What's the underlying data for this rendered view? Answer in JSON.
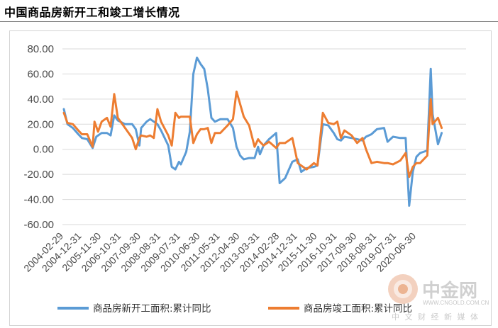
{
  "page": {
    "title": "中国商品房新开工和竣工增长情况"
  },
  "watermark": {
    "name": "中金网",
    "url": "WWW.CNGOLD.COM.CN",
    "tagline": "中 文 财 经 新 媒 体"
  },
  "colors": {
    "series1": "#5b9bd5",
    "series2": "#ed7d31",
    "grid": "#d9d9d9",
    "text": "#4a4a4a"
  },
  "chart_data": {
    "type": "line",
    "title": "",
    "xlabel": "",
    "ylabel": "",
    "ylim": [
      -60,
      80
    ],
    "y_ticks": [
      "80.00",
      "60.00",
      "40.00",
      "20.00",
      "0.00",
      "-20.00",
      "-40.00",
      "-60.00"
    ],
    "y_tick_values": [
      80,
      60,
      40,
      20,
      0,
      -20,
      -40,
      -60
    ],
    "x_ticks": [
      "2004-02-29",
      "2004-12-31",
      "2005-11-30",
      "2006-10-31",
      "2007-09-30",
      "2008-08-31",
      "2009-07-31",
      "2010-06-30",
      "2011-05-31",
      "2012-04-30",
      "2013-03-31",
      "2014-02-28",
      "2014-12-31",
      "2015-11-30",
      "2016-10-31",
      "2017-09-30",
      "2018-08-31",
      "2019-07-31",
      "2020-06-30"
    ],
    "grid": "horizontal",
    "legend_position": "bottom",
    "series": [
      {
        "name": "商品房新开工面积:累计同比",
        "color": "#5b9bd5",
        "points": [
          [
            "2004-02-29",
            32
          ],
          [
            "2004-04-30",
            20
          ],
          [
            "2004-07-31",
            17
          ],
          [
            "2004-10-31",
            12
          ],
          [
            "2004-12-31",
            9
          ],
          [
            "2005-03-31",
            8
          ],
          [
            "2005-06-30",
            1
          ],
          [
            "2005-08-31",
            10
          ],
          [
            "2005-11-30",
            13
          ],
          [
            "2006-02-28",
            13
          ],
          [
            "2006-04-30",
            11
          ],
          [
            "2006-06-30",
            27
          ],
          [
            "2006-08-31",
            23
          ],
          [
            "2006-12-31",
            20
          ],
          [
            "2007-04-30",
            20
          ],
          [
            "2007-06-30",
            16
          ],
          [
            "2007-08-31",
            3
          ],
          [
            "2007-09-30",
            17
          ],
          [
            "2007-12-31",
            22
          ],
          [
            "2008-02-29",
            24
          ],
          [
            "2008-04-30",
            22
          ],
          [
            "2008-06-30",
            20
          ],
          [
            "2008-08-31",
            15
          ],
          [
            "2008-12-31",
            3
          ],
          [
            "2009-02-28",
            -14
          ],
          [
            "2009-04-30",
            -16
          ],
          [
            "2009-06-30",
            -10
          ],
          [
            "2009-07-31",
            -12
          ],
          [
            "2009-10-31",
            -2
          ],
          [
            "2009-12-31",
            14
          ],
          [
            "2010-02-28",
            60
          ],
          [
            "2010-04-30",
            73
          ],
          [
            "2010-06-30",
            68
          ],
          [
            "2010-08-31",
            64
          ],
          [
            "2010-10-31",
            48
          ],
          [
            "2010-12-31",
            25
          ],
          [
            "2011-02-28",
            22
          ],
          [
            "2011-05-31",
            24
          ],
          [
            "2011-09-30",
            24
          ],
          [
            "2011-12-31",
            17
          ],
          [
            "2012-02-29",
            2
          ],
          [
            "2012-04-30",
            -5
          ],
          [
            "2012-06-30",
            -8
          ],
          [
            "2012-09-30",
            -7
          ],
          [
            "2012-12-31",
            -7
          ],
          [
            "2013-02-28",
            2
          ],
          [
            "2013-03-31",
            -4
          ],
          [
            "2013-05-31",
            3
          ],
          [
            "2013-08-31",
            8
          ],
          [
            "2013-12-31",
            13
          ],
          [
            "2014-02-28",
            -27
          ],
          [
            "2014-05-31",
            -23
          ],
          [
            "2014-09-30",
            -10
          ],
          [
            "2014-12-31",
            -8
          ],
          [
            "2015-02-28",
            -18
          ],
          [
            "2015-05-31",
            -15
          ],
          [
            "2015-09-30",
            -14
          ],
          [
            "2015-11-30",
            -13
          ],
          [
            "2016-02-29",
            20
          ],
          [
            "2016-05-31",
            19
          ],
          [
            "2016-08-31",
            13
          ],
          [
            "2016-10-31",
            8
          ],
          [
            "2016-12-31",
            7
          ],
          [
            "2017-02-28",
            10
          ],
          [
            "2017-06-30",
            9
          ],
          [
            "2017-09-30",
            8
          ],
          [
            "2017-12-31",
            7
          ],
          [
            "2018-02-28",
            10
          ],
          [
            "2018-05-31",
            12
          ],
          [
            "2018-08-31",
            16
          ],
          [
            "2018-12-31",
            17
          ],
          [
            "2019-02-28",
            6
          ],
          [
            "2019-05-31",
            10
          ],
          [
            "2019-09-30",
            9
          ],
          [
            "2019-12-31",
            9
          ],
          [
            "2020-02-29",
            -45
          ],
          [
            "2020-04-30",
            -18
          ],
          [
            "2020-06-30",
            -6
          ],
          [
            "2020-08-31",
            -3
          ],
          [
            "2020-12-31",
            -1
          ],
          [
            "2021-02-28",
            64
          ],
          [
            "2021-03-31",
            28
          ],
          [
            "2021-06-30",
            4
          ],
          [
            "2021-08-31",
            13
          ]
        ]
      },
      {
        "name": "商品房竣工面积:累计同比",
        "color": "#ed7d31",
        "points": [
          [
            "2004-02-29",
            29
          ],
          [
            "2004-04-30",
            21
          ],
          [
            "2004-07-31",
            20
          ],
          [
            "2004-10-31",
            15
          ],
          [
            "2004-12-31",
            12
          ],
          [
            "2005-03-31",
            12
          ],
          [
            "2005-06-30",
            2
          ],
          [
            "2005-07-31",
            22
          ],
          [
            "2005-09-30",
            14
          ],
          [
            "2005-11-30",
            22
          ],
          [
            "2006-02-28",
            25
          ],
          [
            "2006-04-30",
            18
          ],
          [
            "2006-06-30",
            44
          ],
          [
            "2006-08-31",
            25
          ],
          [
            "2006-12-31",
            17
          ],
          [
            "2007-04-30",
            9
          ],
          [
            "2007-06-30",
            0
          ],
          [
            "2007-08-31",
            9
          ],
          [
            "2007-09-30",
            11
          ],
          [
            "2007-12-31",
            10
          ],
          [
            "2008-02-29",
            11
          ],
          [
            "2008-04-30",
            9
          ],
          [
            "2008-06-30",
            32
          ],
          [
            "2008-08-31",
            22
          ],
          [
            "2008-12-31",
            11
          ],
          [
            "2009-02-28",
            3
          ],
          [
            "2009-04-30",
            29
          ],
          [
            "2009-06-30",
            25
          ],
          [
            "2009-07-31",
            26
          ],
          [
            "2009-10-31",
            26
          ],
          [
            "2009-12-31",
            26
          ],
          [
            "2010-02-28",
            5
          ],
          [
            "2010-04-30",
            12
          ],
          [
            "2010-06-30",
            16
          ],
          [
            "2010-08-31",
            16
          ],
          [
            "2010-10-31",
            17
          ],
          [
            "2010-12-31",
            5
          ],
          [
            "2011-02-28",
            13
          ],
          [
            "2011-05-31",
            13
          ],
          [
            "2011-09-30",
            19
          ],
          [
            "2011-12-31",
            24
          ],
          [
            "2012-02-29",
            46
          ],
          [
            "2012-04-30",
            36
          ],
          [
            "2012-06-30",
            26
          ],
          [
            "2012-09-30",
            19
          ],
          [
            "2012-12-31",
            2
          ],
          [
            "2013-02-28",
            8
          ],
          [
            "2013-03-31",
            6
          ],
          [
            "2013-05-31",
            3
          ],
          [
            "2013-08-31",
            6
          ],
          [
            "2013-12-31",
            1
          ],
          [
            "2014-02-28",
            5
          ],
          [
            "2014-05-31",
            5
          ],
          [
            "2014-09-30",
            9
          ],
          [
            "2014-12-31",
            -11
          ],
          [
            "2015-02-28",
            -13
          ],
          [
            "2015-05-31",
            -16
          ],
          [
            "2015-09-30",
            -11
          ],
          [
            "2015-11-30",
            -13
          ],
          [
            "2016-02-29",
            29
          ],
          [
            "2016-05-31",
            21
          ],
          [
            "2016-08-31",
            20
          ],
          [
            "2016-10-31",
            22
          ],
          [
            "2016-12-31",
            9
          ],
          [
            "2017-02-28",
            15
          ],
          [
            "2017-06-30",
            11
          ],
          [
            "2017-09-30",
            5
          ],
          [
            "2017-12-31",
            9
          ],
          [
            "2018-02-28",
            0
          ],
          [
            "2018-05-31",
            -11
          ],
          [
            "2018-08-31",
            -10
          ],
          [
            "2018-12-31",
            -11
          ],
          [
            "2019-02-28",
            -11
          ],
          [
            "2019-05-31",
            -12
          ],
          [
            "2019-09-30",
            -9
          ],
          [
            "2019-12-31",
            -3
          ],
          [
            "2020-02-29",
            -22
          ],
          [
            "2020-04-30",
            -14
          ],
          [
            "2020-06-30",
            -11
          ],
          [
            "2020-08-31",
            -11
          ],
          [
            "2020-12-31",
            -5
          ],
          [
            "2021-02-28",
            40
          ],
          [
            "2021-03-31",
            20
          ],
          [
            "2021-06-30",
            25
          ],
          [
            "2021-08-31",
            17
          ]
        ]
      }
    ]
  }
}
